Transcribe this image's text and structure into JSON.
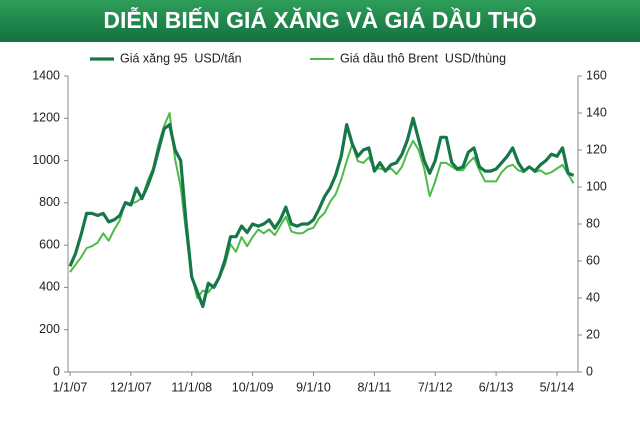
{
  "chart_data": {
    "type": "line",
    "title": "DIỄN BIẾN GIÁ XĂNG VÀ GIÁ DẦU THÔ",
    "categories": [
      "1/1/07",
      null,
      null,
      null,
      null,
      null,
      null,
      null,
      null,
      null,
      null,
      "12/1/07",
      null,
      null,
      null,
      null,
      null,
      null,
      null,
      null,
      null,
      null,
      "11/1/08",
      null,
      null,
      null,
      null,
      null,
      null,
      null,
      null,
      null,
      null,
      "10/1/09",
      null,
      null,
      null,
      null,
      null,
      null,
      null,
      null,
      null,
      null,
      "9/1/10",
      null,
      null,
      null,
      null,
      null,
      null,
      null,
      null,
      null,
      null,
      "8/1/11",
      null,
      null,
      null,
      null,
      null,
      null,
      null,
      null,
      null,
      null,
      "7/1/12",
      null,
      null,
      null,
      null,
      null,
      null,
      null,
      null,
      null,
      null,
      "6/1/13",
      null,
      null,
      null,
      null,
      null,
      null,
      null,
      null,
      null,
      null,
      "5/1/14",
      null,
      null,
      null
    ],
    "series": [
      {
        "name": "Giá xăng 95  USD/tấn",
        "color": "#17774a",
        "values": [
          500,
          560,
          650,
          750,
          750,
          740,
          750,
          710,
          720,
          740,
          800,
          790,
          870,
          820,
          880,
          950,
          1050,
          1150,
          1170,
          1050,
          1000,
          700,
          450,
          380,
          310,
          420,
          400,
          450,
          530,
          640,
          640,
          690,
          660,
          700,
          690,
          700,
          720,
          680,
          720,
          780,
          700,
          690,
          700,
          700,
          720,
          770,
          830,
          870,
          930,
          1020,
          1170,
          1080,
          1020,
          1050,
          1060,
          950,
          990,
          950,
          980,
          990,
          1030,
          1100,
          1200,
          1100,
          1000,
          940,
          1000,
          1110,
          1110,
          990,
          960,
          970,
          1040,
          1060,
          970,
          950,
          950,
          960,
          990,
          1020,
          1060,
          990,
          950,
          970,
          950,
          980,
          1000,
          1030,
          1020,
          1060,
          940,
          930
        ]
      },
      {
        "name": "Giá dầu thô Brent  USD/thùng",
        "color": "#4dbb48",
        "axis": "y2",
        "values": [
          54,
          58,
          62,
          67,
          68,
          70,
          75,
          71,
          77,
          82,
          92,
          91,
          92,
          94,
          103,
          110,
          123,
          133,
          140,
          115,
          100,
          75,
          52,
          40,
          44,
          43,
          47,
          51,
          58,
          69,
          65,
          73,
          68,
          73,
          77,
          75,
          77,
          74,
          79,
          84,
          76,
          75,
          75,
          77,
          78,
          83,
          86,
          92,
          96,
          104,
          114,
          123,
          114,
          113,
          116,
          110,
          110,
          109,
          110,
          107,
          111,
          119,
          125,
          120,
          110,
          95,
          103,
          113,
          113,
          111,
          109,
          109,
          113,
          116,
          109,
          103,
          103,
          103,
          108,
          111,
          112,
          109,
          108,
          111,
          108,
          109,
          107,
          108,
          110,
          112,
          107,
          102
        ]
      }
    ],
    "ylim": [
      0,
      1400
    ],
    "yticks": [
      0,
      200,
      400,
      600,
      800,
      1000,
      1200,
      1400
    ],
    "y2lim": [
      0,
      160
    ],
    "y2ticks": [
      0,
      20,
      40,
      60,
      80,
      100,
      120,
      140,
      160
    ],
    "grid": false
  }
}
